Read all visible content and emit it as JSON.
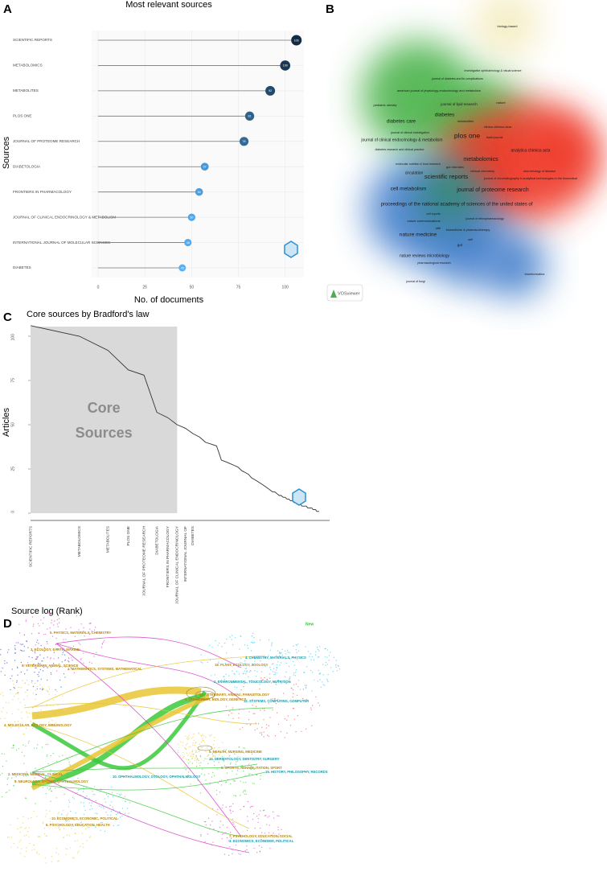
{
  "panels": [
    "A",
    "B",
    "C",
    "D"
  ],
  "chart_data": [
    {
      "type": "lollipop",
      "title": "Most relevant sources",
      "xlabel": "No. of documents",
      "ylabel": "Sources",
      "categories": [
        "SCIENTIFIC REPORTS",
        "METABOLOMICS",
        "METABOLITES",
        "PLOS ONE",
        "JOURNAL OF PROTEOME RESEARCH",
        "DIABETOLOGIA",
        "FRONTIERS IN PHARMACOLOGY",
        "JOURNAL OF CLINICAL ENDOCRINOLOGY & METABOLISM",
        "INTERNATIONAL JOURNAL OF MOLECULAR SCIENCES",
        "DIABETES"
      ],
      "values": [
        106,
        100,
        92,
        81,
        78,
        57,
        54,
        50,
        48,
        45
      ],
      "color_low": "#56b1f7",
      "color_high": "#132b43",
      "xlim": [
        0,
        110
      ],
      "xticks": [
        0,
        25,
        50,
        75,
        100
      ],
      "grid": true
    },
    {
      "type": "bradford",
      "title": "Core sources by Bradford's law",
      "xlabel": "Source log (Rank)",
      "ylabel": "Articles",
      "core_label": "Core Sources",
      "log_x": true,
      "color": "#333333",
      "core_color": "#d9d9d9",
      "x": [
        1,
        2,
        3,
        4,
        5,
        6,
        7,
        8,
        9,
        10,
        11,
        12,
        13,
        14,
        15,
        16,
        17,
        18,
        19,
        20,
        21,
        22,
        23,
        24,
        25,
        26,
        27,
        28,
        29,
        30,
        31,
        32,
        33,
        34,
        35,
        36,
        37,
        38,
        39,
        40,
        41,
        42,
        43,
        44,
        45,
        46,
        47,
        48,
        49,
        50,
        51,
        52,
        53,
        54,
        55,
        56,
        57,
        58,
        59,
        60
      ],
      "values": [
        106,
        100,
        92,
        81,
        78,
        57,
        54,
        50,
        48,
        45,
        43,
        40,
        39,
        38,
        30,
        29,
        28,
        27,
        26,
        24,
        23,
        22,
        20,
        19,
        18,
        17,
        16,
        15,
        14,
        13,
        12,
        12,
        11,
        10,
        10,
        9,
        9,
        8,
        8,
        7,
        7,
        6,
        6,
        5,
        5,
        5,
        4,
        4,
        4,
        4,
        3,
        3,
        3,
        3,
        2,
        2,
        2,
        1,
        1,
        1
      ],
      "rank_labels": [
        "SCIENTIFIC REPORTS",
        "METABOLOMICS",
        "METABOLITES",
        "PLOS ONE",
        "JOURNAL OF PROTEOME RESEARCH",
        "DIABETOLOGIA",
        "FRONTIERS IN PHARMACOLOGY",
        "JOURNAL OF CLINICAL ENDOCRINOLOGY",
        "INTERNATIONAL JOURNAL OF",
        "DIABETES"
      ],
      "core_zone": [
        1,
        8
      ],
      "xlim": [
        1,
        60
      ],
      "ylim": [
        0,
        110
      ],
      "yticks": [
        0,
        25,
        50,
        75,
        100
      ]
    }
  ],
  "density_map": {
    "brand": "VOSviewer",
    "terms": [
      "biology-based",
      "investigative ophthalmology & visual science",
      "journal of diabetes and its complications",
      "american journal of physiology-endocrinology and metabolism",
      "pediatric obesity",
      "journal of lipid research",
      "nature",
      "diabetes care",
      "diabetes",
      "metabolites",
      "clinica chimica acta",
      "journal of clinical investigation",
      "plos one",
      "faseb journal",
      "journal of clinical endocrinology & metabolism",
      "diabetes research and clinical practice",
      "metabolomics",
      "analytica chimica acta",
      "molecular nutrition & food research",
      "gut microbes",
      "clinical chemistry",
      "neurobiology of disease",
      "circulation",
      "scientific reports",
      "journal of chromatography b-analytical technologies in the biomedical",
      "cell metabolism",
      "journal of proteome research",
      "proceedings of the national academy of sciences of the united states of",
      "cell reports",
      "journal of ethnopharmacology",
      "nature communications",
      "elife",
      "biomedicine & pharmacotherapy",
      "nature medicine",
      "cell",
      "gut",
      "nature reviews microbiology",
      "pharmacological research",
      "bioinformatics",
      "journal of fungi"
    ]
  },
  "dual_map": {
    "new_label": "New",
    "left_labels": [
      "5. PHYSICS, MATERIALS, CHEMISTRY",
      "3. ECOLOGY, EARTH, MARINE",
      "9. VETERINARY, ANIMAL, SCIENCE",
      "1. MATHEMATICS, SYSTEMS, MATHEMATICAL",
      "4. MOLECULAR, BIOLOGY, IMMUNOLOGY",
      "2. MEDICINE, MEDICAL, CLINICAL",
      "5. NEUROLOGY, SPORTS, OPHTHALMOLOGY",
      "10. ECONOMICS, ECONOMIC, POLITICAL",
      "6. PSYCHOLOGY, EDUCATION, HEALTH"
    ],
    "right_labels": [
      "4. CHEMISTRY, MATERIALS, PHYSICS",
      "16. PLANT, ECOLOGY, ZOOLOGY",
      "2. ENVIRONMENTAL, TOXICOLOGY, NUTRITION",
      "11. VETERINARY, ANIMAL, PARASITOLOGY",
      "12. SYSTEMS, COMPUTING, COMPUTER",
      "8. MOLECULAR, BIOLOGY, GENETICS",
      "10. OPHTHALMOLOGY, OTOLOGY, OPHTHALMOLOGY",
      "5. HEALTH, NURSING, MEDICINE",
      "14. DERMATOLOGY, DENTISTRY, SURGERY",
      "6. SPORTS, REHABILITATION, SPORT",
      "15. HISTORY, PHILOSOPHY, RECORDS",
      "7. PSYCHOLOGY, EDUCATION, SOCIAL",
      "3. ECONOMICS, ECONOMIC, POLITICAL"
    ]
  }
}
